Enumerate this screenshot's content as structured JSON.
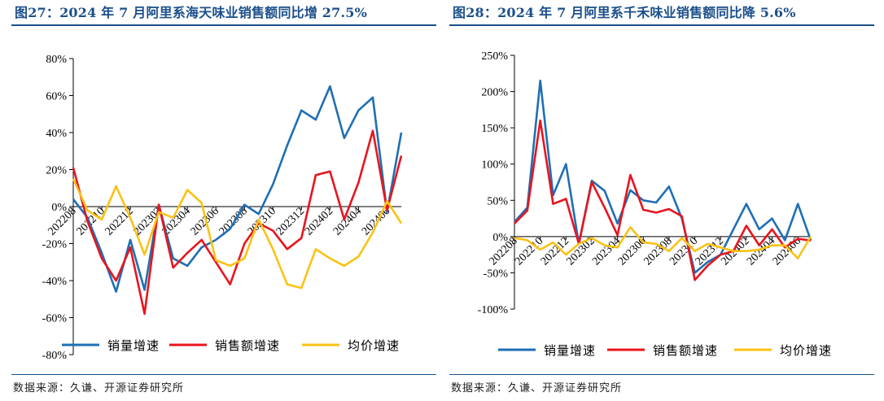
{
  "left": {
    "title": "图27：2024 年 7 月阿里系海天味业销售额同比增 27.5%",
    "source": "数据来源：久谦、开源证券研究所",
    "chart_data": {
      "type": "line",
      "x": [
        "202208",
        "202209",
        "202210",
        "202211",
        "202212",
        "202301",
        "202302",
        "202303",
        "202304",
        "202305",
        "202306",
        "202307",
        "202308",
        "202309",
        "202310",
        "202311",
        "202312",
        "202401",
        "202402",
        "202403",
        "202404",
        "202405",
        "202406",
        "202407"
      ],
      "xtick_labels": [
        "202208",
        "202210",
        "202212",
        "202302",
        "202304",
        "202306",
        "202308",
        "202310",
        "202312",
        "202402",
        "202404",
        "202406"
      ],
      "ylim": [
        -80,
        80
      ],
      "yticks": [
        "80%",
        "60%",
        "40%",
        "20%",
        "0%",
        "-20%",
        "-40%",
        "-60%",
        "-80%"
      ],
      "ytick_values": [
        80,
        60,
        40,
        20,
        0,
        -20,
        -40,
        -60,
        -80
      ],
      "legend_position": "bottom",
      "series": [
        {
          "name": "销量增速",
          "color": "#1f6fb4",
          "values": [
            4,
            -6,
            -25,
            -46,
            -18,
            -45,
            1,
            -28,
            -32,
            -22,
            -18,
            -12,
            1,
            -4,
            12,
            33,
            52,
            47,
            65,
            37,
            52,
            59,
            -3,
            40
          ]
        },
        {
          "name": "销售额增速",
          "color": "#e8141e",
          "values": [
            21,
            -8,
            -28,
            -40,
            -22,
            -58,
            1,
            -33,
            -25,
            -18,
            -30,
            -42,
            -20,
            -9,
            -13,
            -23,
            -17,
            17,
            19,
            -7,
            13,
            41,
            -2,
            27.5
          ]
        },
        {
          "name": "均价增速",
          "color": "#fac214",
          "values": [
            15,
            -2,
            -7,
            11,
            -6,
            -26,
            -3,
            -6,
            9,
            2,
            -29,
            -32,
            -28,
            -7,
            -23,
            -42,
            -44,
            -23,
            -28,
            -32,
            -27,
            -14,
            3,
            -9
          ]
        }
      ]
    }
  },
  "right": {
    "title": "图28：2024 年 7 月阿里系千禾味业销售额同比降 5.6%",
    "source": "数据来源：久谦、开源证券研究所",
    "chart_data": {
      "type": "line",
      "x": [
        "202208",
        "202209",
        "202210",
        "202211",
        "202212",
        "202301",
        "202302",
        "202303",
        "202304",
        "202305",
        "202306",
        "202307",
        "202308",
        "202309",
        "202310",
        "202311",
        "202312",
        "202401",
        "202402",
        "202403",
        "202404",
        "202405",
        "202406",
        "202407"
      ],
      "xtick_labels": [
        "202208",
        "202210",
        "202212",
        "202302",
        "202304",
        "202306",
        "202308",
        "202310",
        "202312",
        "202402",
        "202404",
        "202406"
      ],
      "ylim": [
        -100,
        250
      ],
      "yticks": [
        "250%",
        "200%",
        "150%",
        "100%",
        "50%",
        "0%",
        "-50%",
        "-100%"
      ],
      "ytick_values": [
        250,
        200,
        150,
        100,
        50,
        0,
        -50,
        -100
      ],
      "legend_position": "bottom",
      "series": [
        {
          "name": "销量增速",
          "color": "#1f6fb4",
          "values": [
            20,
            40,
            215,
            57,
            100,
            -10,
            77,
            63,
            18,
            64,
            50,
            47,
            69,
            25,
            -50,
            -35,
            -25,
            10,
            45,
            10,
            25,
            -5,
            45,
            -5
          ]
        },
        {
          "name": "销售额增速",
          "color": "#e8141e",
          "values": [
            18,
            36,
            160,
            45,
            52,
            -10,
            75,
            40,
            2,
            85,
            37,
            33,
            38,
            28,
            -60,
            -40,
            -25,
            -20,
            15,
            -12,
            10,
            -15,
            -3,
            -5.6
          ]
        },
        {
          "name": "均价增速",
          "color": "#fac214",
          "values": [
            -2,
            -5,
            -18,
            -8,
            -25,
            -10,
            -2,
            -12,
            -15,
            13,
            -8,
            -10,
            -20,
            -2,
            -20,
            -10,
            -15,
            -20,
            -20,
            -18,
            -12,
            -12,
            -30,
            0
          ]
        }
      ]
    }
  }
}
